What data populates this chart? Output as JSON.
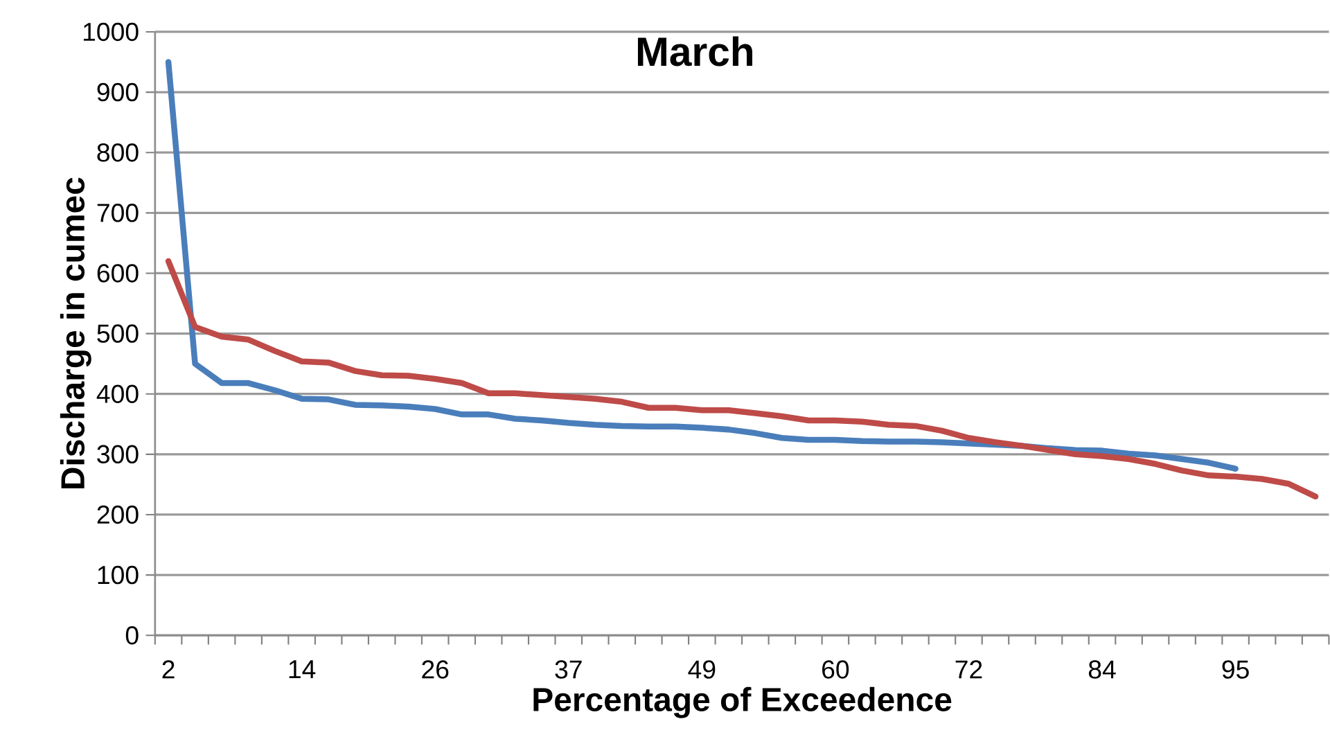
{
  "chart_data": {
    "type": "line",
    "title": "March",
    "xlabel": "Percentage of Exceedence",
    "ylabel": "Discharge in cumec",
    "categories": [
      "2",
      null,
      null,
      null,
      null,
      "14",
      null,
      null,
      null,
      null,
      "26",
      null,
      null,
      null,
      null,
      "37",
      null,
      null,
      null,
      null,
      "49",
      null,
      null,
      null,
      null,
      "60",
      null,
      null,
      null,
      null,
      "72",
      null,
      null,
      null,
      null,
      "84",
      null,
      null,
      null,
      null,
      "95",
      null,
      null,
      null
    ],
    "series": [
      {
        "color": "#4a7ebb",
        "values": [
          950,
          450,
          418,
          418,
          406,
          392,
          391,
          382,
          381,
          379,
          375,
          366,
          366,
          359,
          356,
          352,
          349,
          347,
          346,
          346,
          344,
          341,
          335,
          327,
          324,
          324,
          322,
          321,
          321,
          320,
          318,
          316,
          314,
          310,
          307,
          306,
          301,
          298,
          292,
          286,
          276,
          null,
          null,
          null
        ]
      },
      {
        "color": "#be4b48",
        "values": [
          620,
          511,
          495,
          490,
          471,
          454,
          452,
          438,
          431,
          430,
          425,
          418,
          401,
          401,
          398,
          395,
          392,
          387,
          377,
          377,
          373,
          373,
          368,
          363,
          356,
          356,
          354,
          349,
          347,
          339,
          327,
          320,
          314,
          307,
          300,
          297,
          292,
          284,
          273,
          265,
          263,
          259,
          251,
          230
        ]
      }
    ],
    "ylim": [
      0,
      1000
    ],
    "yticks": [
      0,
      100,
      200,
      300,
      400,
      500,
      600,
      700,
      800,
      900,
      1000
    ],
    "grid": "y",
    "marker": "none",
    "line_style": "solid"
  }
}
